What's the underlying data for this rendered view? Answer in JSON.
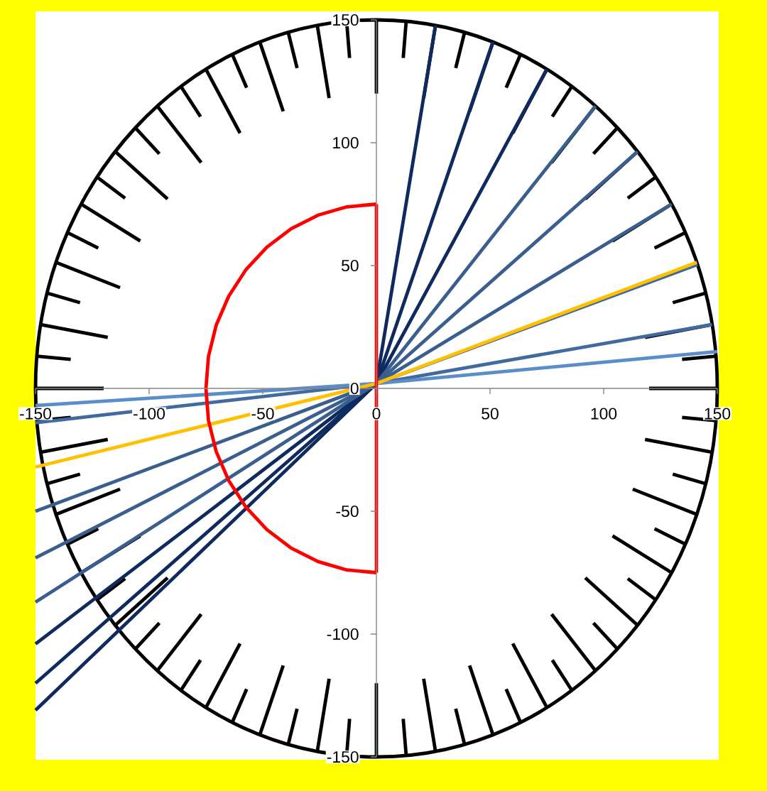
{
  "chart_data": {
    "type": "line",
    "xlim": [
      -150,
      150
    ],
    "ylim": [
      -150,
      150
    ],
    "xticks": [
      -150,
      -100,
      -50,
      0,
      50,
      100,
      150
    ],
    "yticks": [
      -150,
      -100,
      -50,
      0,
      50,
      100,
      150
    ],
    "series": [
      {
        "color": "#000000",
        "x": [
          150,
          120
        ],
        "values": [
          0,
          0
        ]
      },
      {
        "color": "#000000",
        "x": [
          149.4,
          134.5
        ],
        "values": [
          13.1,
          11.8
        ]
      },
      {
        "color": "#000000",
        "x": [
          147.7,
          118.2
        ],
        "values": [
          26,
          20.8
        ]
      },
      {
        "color": "#000000",
        "x": [
          144.9,
          130.4
        ],
        "values": [
          38.8,
          34.9
        ]
      },
      {
        "color": "#000000",
        "x": [
          135.9,
          122.4
        ],
        "values": [
          63.4,
          57.1
        ]
      },
      {
        "color": "#000000",
        "x": [
          129.9,
          103.9
        ],
        "values": [
          75,
          60
        ]
      },
      {
        "color": "#000000",
        "x": [
          122.9,
          110.6
        ],
        "values": [
          86,
          77.4
        ]
      },
      {
        "color": "#000000",
        "x": [
          114.9,
          91.9
        ],
        "values": [
          96.4,
          77.1
        ]
      },
      {
        "color": "#000000",
        "x": [
          106.1,
          95.5
        ],
        "values": [
          106.1,
          95.5
        ]
      },
      {
        "color": "#000000",
        "x": [
          96.4,
          77.1
        ],
        "values": [
          114.9,
          91.9
        ]
      },
      {
        "color": "#000000",
        "x": [
          86,
          77.4
        ],
        "values": [
          122.9,
          110.6
        ]
      },
      {
        "color": "#000000",
        "x": [
          75,
          60
        ],
        "values": [
          129.9,
          103.9
        ]
      },
      {
        "color": "#000000",
        "x": [
          63.4,
          57.1
        ],
        "values": [
          135.9,
          122.4
        ]
      },
      {
        "color": "#000000",
        "x": [
          51.3,
          41
        ],
        "values": [
          141,
          112.8
        ]
      },
      {
        "color": "#000000",
        "x": [
          38.8,
          34.9
        ],
        "values": [
          144.9,
          130.4
        ]
      },
      {
        "color": "#000000",
        "x": [
          26,
          20.8
        ],
        "values": [
          147.7,
          118.2
        ]
      },
      {
        "color": "#000000",
        "x": [
          13.1,
          11.8
        ],
        "values": [
          149.4,
          134.5
        ]
      },
      {
        "color": "#000000",
        "x": [
          0,
          0
        ],
        "values": [
          150,
          120
        ]
      },
      {
        "color": "#000000",
        "x": [
          -13.1,
          -11.8
        ],
        "values": [
          149.4,
          134.5
        ]
      },
      {
        "color": "#000000",
        "x": [
          -26,
          -20.8
        ],
        "values": [
          147.7,
          118.2
        ]
      },
      {
        "color": "#000000",
        "x": [
          -38.8,
          -34.9
        ],
        "values": [
          144.9,
          130.4
        ]
      },
      {
        "color": "#000000",
        "x": [
          -51.3,
          -41
        ],
        "values": [
          141,
          112.8
        ]
      },
      {
        "color": "#000000",
        "x": [
          -63.4,
          -57.1
        ],
        "values": [
          135.9,
          122.4
        ]
      },
      {
        "color": "#000000",
        "x": [
          -75,
          -60
        ],
        "values": [
          129.9,
          103.9
        ]
      },
      {
        "color": "#000000",
        "x": [
          -86,
          -77.4
        ],
        "values": [
          122.9,
          110.6
        ]
      },
      {
        "color": "#000000",
        "x": [
          -96.4,
          -77.1
        ],
        "values": [
          114.9,
          91.9
        ]
      },
      {
        "color": "#000000",
        "x": [
          -106.1,
          -95.5
        ],
        "values": [
          106.1,
          95.5
        ]
      },
      {
        "color": "#000000",
        "x": [
          -114.9,
          -91.9
        ],
        "values": [
          96.4,
          77.1
        ]
      },
      {
        "color": "#000000",
        "x": [
          -122.9,
          -110.6
        ],
        "values": [
          86,
          77.4
        ]
      },
      {
        "color": "#000000",
        "x": [
          -129.9,
          -103.9
        ],
        "values": [
          75,
          60
        ]
      },
      {
        "color": "#000000",
        "x": [
          -135.9,
          -122.4
        ],
        "values": [
          63.4,
          57.1
        ]
      },
      {
        "color": "#000000",
        "x": [
          -141,
          -112.8
        ],
        "values": [
          51.3,
          41
        ]
      },
      {
        "color": "#000000",
        "x": [
          -144.9,
          -130.4
        ],
        "values": [
          38.8,
          34.9
        ]
      },
      {
        "color": "#000000",
        "x": [
          -147.7,
          -118.2
        ],
        "values": [
          26,
          20.8
        ]
      },
      {
        "color": "#000000",
        "x": [
          -149.4,
          -134.5
        ],
        "values": [
          13.1,
          11.8
        ]
      },
      {
        "color": "#000000",
        "x": [
          -150,
          -120
        ],
        "values": [
          0,
          0
        ]
      },
      {
        "color": "#000000",
        "x": [
          -149.4,
          -134.5
        ],
        "values": [
          -13.1,
          -11.8
        ]
      },
      {
        "color": "#000000",
        "x": [
          -147.7,
          -118.2
        ],
        "values": [
          -26,
          -20.8
        ]
      },
      {
        "color": "#000000",
        "x": [
          -144.9,
          -130.4
        ],
        "values": [
          -38.8,
          -34.9
        ]
      },
      {
        "color": "#000000",
        "x": [
          -141,
          -112.8
        ],
        "values": [
          -51.3,
          -41
        ]
      },
      {
        "color": "#000000",
        "x": [
          -135.9,
          -122.4
        ],
        "values": [
          -63.4,
          -57.1
        ]
      },
      {
        "color": "#000000",
        "x": [
          -129.9,
          -103.9
        ],
        "values": [
          -75,
          -60
        ]
      },
      {
        "color": "#000000",
        "x": [
          -122.9,
          -110.6
        ],
        "values": [
          -86,
          -77.4
        ]
      },
      {
        "color": "#000000",
        "x": [
          -114.9,
          -91.9
        ],
        "values": [
          -96.4,
          -77.1
        ]
      },
      {
        "color": "#000000",
        "x": [
          -106.1,
          -95.5
        ],
        "values": [
          -106.1,
          -95.5
        ]
      },
      {
        "color": "#000000",
        "x": [
          -96.4,
          -77.1
        ],
        "values": [
          -114.9,
          -91.9
        ]
      },
      {
        "color": "#000000",
        "x": [
          -86,
          -77.4
        ],
        "values": [
          -122.9,
          -110.6
        ]
      },
      {
        "color": "#000000",
        "x": [
          -75,
          -60
        ],
        "values": [
          -129.9,
          -103.9
        ]
      },
      {
        "color": "#000000",
        "x": [
          -63.4,
          -57.1
        ],
        "values": [
          -135.9,
          -122.4
        ]
      },
      {
        "color": "#000000",
        "x": [
          -51.3,
          -41
        ],
        "values": [
          -141,
          -112.8
        ]
      },
      {
        "color": "#000000",
        "x": [
          -38.8,
          -34.9
        ],
        "values": [
          -144.9,
          -130.4
        ]
      },
      {
        "color": "#000000",
        "x": [
          -26,
          -20.8
        ],
        "values": [
          -147.7,
          -118.2
        ]
      },
      {
        "color": "#000000",
        "x": [
          -13.1,
          -11.8
        ],
        "values": [
          -149.4,
          -134.5
        ]
      },
      {
        "color": "#000000",
        "x": [
          0,
          0
        ],
        "values": [
          -150,
          -120
        ]
      },
      {
        "color": "#000000",
        "x": [
          13.1,
          11.8
        ],
        "values": [
          -149.4,
          -134.5
        ]
      },
      {
        "color": "#000000",
        "x": [
          26,
          20.8
        ],
        "values": [
          -147.7,
          -118.2
        ]
      },
      {
        "color": "#000000",
        "x": [
          38.8,
          34.9
        ],
        "values": [
          -144.9,
          -130.4
        ]
      },
      {
        "color": "#000000",
        "x": [
          51.3,
          41
        ],
        "values": [
          -141,
          -112.8
        ]
      },
      {
        "color": "#000000",
        "x": [
          63.4,
          57.1
        ],
        "values": [
          -135.9,
          -122.4
        ]
      },
      {
        "color": "#000000",
        "x": [
          75,
          60
        ],
        "values": [
          -129.9,
          -103.9
        ]
      },
      {
        "color": "#000000",
        "x": [
          86,
          77.4
        ],
        "values": [
          -122.9,
          -110.6
        ]
      },
      {
        "color": "#000000",
        "x": [
          96.4,
          77.1
        ],
        "values": [
          -114.9,
          -91.9
        ]
      },
      {
        "color": "#000000",
        "x": [
          106.1,
          95.5
        ],
        "values": [
          -106.1,
          -95.5
        ]
      },
      {
        "color": "#000000",
        "x": [
          114.9,
          91.9
        ],
        "values": [
          -96.4,
          -77.1
        ]
      },
      {
        "color": "#000000",
        "x": [
          122.9,
          110.6
        ],
        "values": [
          -86,
          -77.4
        ]
      },
      {
        "color": "#000000",
        "x": [
          129.9,
          103.9
        ],
        "values": [
          -75,
          -60
        ]
      },
      {
        "color": "#000000",
        "x": [
          135.9,
          122.4
        ],
        "values": [
          -63.4,
          -57.1
        ]
      },
      {
        "color": "#000000",
        "x": [
          141,
          112.8
        ],
        "values": [
          -51.3,
          -41
        ]
      },
      {
        "color": "#000000",
        "x": [
          144.9,
          130.4
        ],
        "values": [
          -38.8,
          -34.9
        ]
      },
      {
        "color": "#000000",
        "x": [
          147.7,
          118.2
        ],
        "values": [
          -26,
          -20.8
        ]
      },
      {
        "color": "#000000",
        "x": [
          149.4,
          134.5
        ],
        "values": [
          -13.1,
          -11.8
        ]
      },
      {
        "color": "#0f2a5e",
        "x": [
          26,
          0,
          -150
        ],
        "values": [
          147.7,
          2,
          -131
        ]
      },
      {
        "color": "#0f2a5e",
        "x": [
          51.3,
          0,
          -150
        ],
        "values": [
          141,
          2,
          -120
        ]
      },
      {
        "color": "#0f2a5e",
        "x": [
          75,
          0,
          -150
        ],
        "values": [
          129.9,
          2,
          -104
        ]
      },
      {
        "color": "#3a5f8f",
        "x": [
          96.4,
          0,
          -150
        ],
        "values": [
          114.9,
          2,
          -87
        ]
      },
      {
        "color": "#3a5f8f",
        "x": [
          114.9,
          0,
          -150
        ],
        "values": [
          96.4,
          2,
          -69
        ]
      },
      {
        "color": "#3a5f8f",
        "x": [
          129.9,
          0,
          -150
        ],
        "values": [
          75,
          2,
          -50
        ]
      },
      {
        "color": "#3f68a0",
        "x": [
          141.3,
          0
        ],
        "values": [
          50.4,
          2
        ]
      },
      {
        "color": "#416a9e",
        "x": [
          147.7,
          0,
          -150
        ],
        "values": [
          26,
          2,
          -14
        ]
      },
      {
        "color": "#5b8dcb",
        "x": [
          150,
          0,
          -150
        ],
        "values": [
          15,
          2,
          -7
        ]
      },
      {
        "color": "#ffc000",
        "x": [
          141,
          0,
          -150
        ],
        "values": [
          51.3,
          2,
          -32
        ]
      },
      {
        "color": "#ff0000",
        "x": [
          0,
          -13,
          -25.7,
          -37.5,
          -48.2,
          -57.5,
          -65,
          -70.5,
          -73.9,
          -75,
          -73.9,
          -70.5,
          -65,
          -57.5,
          -48.2,
          -37.5,
          -25.7,
          -13,
          0
        ],
        "values": [
          75,
          73.9,
          70.5,
          65,
          57.5,
          48.2,
          37.5,
          25.7,
          13,
          0,
          -13,
          -25.7,
          -37.5,
          -48.2,
          -57.5,
          -65,
          -70.5,
          -73.9,
          -75
        ]
      },
      {
        "color": "#ff0000",
        "x": [
          0,
          0
        ],
        "values": [
          -75,
          75
        ]
      }
    ]
  }
}
